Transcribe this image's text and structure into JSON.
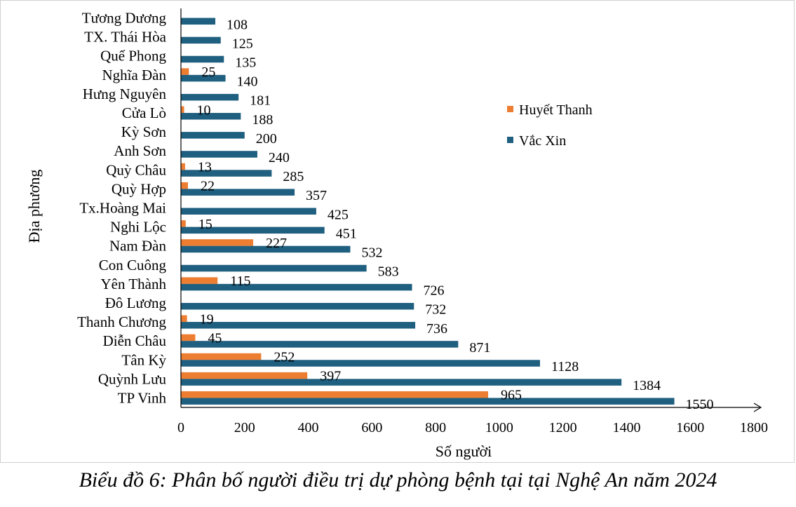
{
  "caption": "Biểu đồ 6: Phân bố người điều trị dự phòng bệnh tại tại Nghệ An năm 2024",
  "chart_data": {
    "type": "bar",
    "orientation": "horizontal",
    "xlabel": "Số người",
    "ylabel": "Địa phương",
    "xlim": [
      0,
      1800
    ],
    "xticks": [
      0,
      200,
      400,
      600,
      800,
      1000,
      1200,
      1400,
      1600,
      1800
    ],
    "grid": false,
    "legend_position": "right",
    "categories": [
      "TP Vinh",
      "Quỳnh Lưu",
      "Tân Kỳ",
      "Diễn Châu",
      "Thanh Chương",
      "Đô Lương",
      "Yên Thành",
      "Con Cuông",
      "Nam Đàn",
      "Nghi Lộc",
      "Tx.Hoàng Mai",
      "Quỳ Hợp",
      "Quỳ Châu",
      "Anh Sơn",
      "Kỳ Sơn",
      "Cửa Lò",
      "Hưng Nguyên",
      "Nghĩa Đàn",
      "Quế Phong",
      "TX. Thái Hòa",
      "Tương Dương"
    ],
    "series": [
      {
        "name": "Huyết Thanh",
        "color": "#ed7d31",
        "values": [
          965,
          397,
          252,
          45,
          19,
          null,
          115,
          null,
          227,
          15,
          null,
          22,
          13,
          null,
          null,
          10,
          null,
          25,
          null,
          null,
          null
        ]
      },
      {
        "name": "Vắc Xin",
        "color": "#1f5f7f",
        "values": [
          1550,
          1384,
          1128,
          871,
          736,
          732,
          726,
          583,
          532,
          451,
          425,
          357,
          285,
          240,
          200,
          188,
          181,
          140,
          135,
          125,
          108
        ]
      }
    ]
  }
}
